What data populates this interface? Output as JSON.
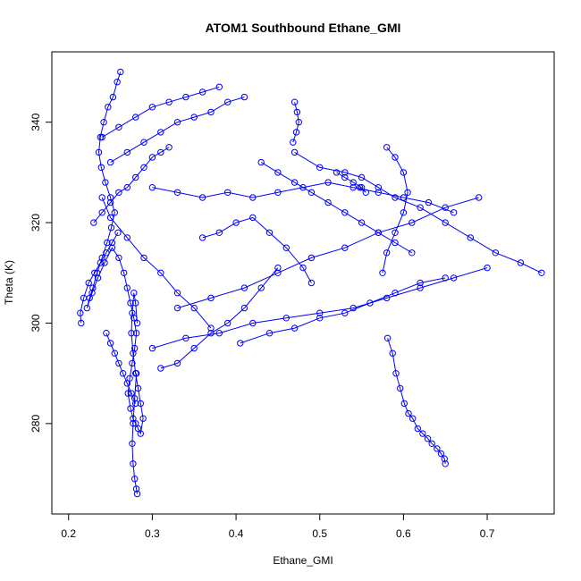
{
  "chart_data": {
    "type": "line",
    "title": "ATOM1 Southbound Ethane_GMI",
    "xlabel": "Ethane_GMI",
    "ylabel": "Theta (K)",
    "xlim": [
      0.18,
      0.78
    ],
    "ylim": [
      262,
      354
    ],
    "x_ticks": [
      0.2,
      0.3,
      0.4,
      0.5,
      0.6,
      0.7
    ],
    "x_tick_labels": [
      "0.2",
      "0.3",
      "0.4",
      "0.5",
      "0.6",
      "0.7"
    ],
    "y_ticks": [
      280,
      300,
      320,
      340
    ],
    "y_tick_labels": [
      "280",
      "300",
      "320",
      "340"
    ],
    "grid": false,
    "marker": "open-circle",
    "series_color": "#0000ff",
    "series": [
      {
        "x": [
          0.262,
          0.258,
          0.253,
          0.247,
          0.242,
          0.238,
          0.236,
          0.239,
          0.244,
          0.25,
          0.255,
          0.251,
          0.246,
          0.24,
          0.234,
          0.229,
          0.225,
          0.222,
          0.228,
          0.235,
          0.243,
          0.252,
          0.26,
          0.266,
          0.27,
          0.274,
          0.278,
          0.281,
          0.279,
          0.276,
          0.273,
          0.271,
          0.274,
          0.277,
          0.28,
          0.283,
          0.286,
          0.289,
          0.286,
          0.283,
          0.28,
          0.277,
          0.275,
          0.276,
          0.278,
          0.28,
          0.282
        ],
        "y": [
          350,
          348,
          345,
          343,
          340,
          337,
          334,
          331,
          328,
          325,
          322,
          319,
          316,
          313,
          310,
          307,
          305,
          303,
          306,
          309,
          312,
          315,
          313,
          310,
          307,
          304,
          301,
          298,
          295,
          292,
          289,
          286,
          283,
          281,
          280,
          279,
          278,
          281,
          284,
          287,
          290,
          294,
          298,
          302,
          306,
          304,
          300
        ]
      },
      {
        "x": [
          0.281,
          0.279,
          0.277,
          0.276,
          0.277,
          0.279,
          0.281,
          0.282
        ],
        "y": [
          290,
          285,
          280,
          276,
          272,
          269,
          267,
          266
        ]
      },
      {
        "x": [
          0.215,
          0.214,
          0.218,
          0.224,
          0.231,
          0.238,
          0.245,
          0.252,
          0.259
        ],
        "y": [
          300,
          302,
          305,
          308,
          310,
          312,
          314,
          316,
          318
        ]
      },
      {
        "x": [
          0.24,
          0.25,
          0.27,
          0.29,
          0.31,
          0.33,
          0.35,
          0.37
        ],
        "y": [
          325,
          321,
          317,
          313,
          310,
          306,
          303,
          299
        ]
      },
      {
        "x": [
          0.24,
          0.26,
          0.28,
          0.3,
          0.32,
          0.34,
          0.36,
          0.38
        ],
        "y": [
          337,
          339,
          341,
          343,
          344,
          345,
          346,
          347
        ]
      },
      {
        "x": [
          0.25,
          0.27,
          0.29,
          0.31,
          0.33,
          0.35,
          0.37,
          0.39,
          0.41
        ],
        "y": [
          332,
          334,
          336,
          338,
          340,
          341,
          342,
          344,
          345
        ]
      },
      {
        "x": [
          0.3,
          0.33,
          0.36,
          0.39,
          0.42,
          0.45,
          0.48,
          0.51,
          0.54,
          0.57,
          0.6,
          0.63,
          0.66
        ],
        "y": [
          327,
          326,
          325,
          326,
          325,
          326,
          327,
          328,
          327,
          326,
          325,
          324,
          322
        ]
      },
      {
        "x": [
          0.47,
          0.5,
          0.53,
          0.55,
          0.57,
          0.59,
          0.62,
          0.65,
          0.68,
          0.71,
          0.74,
          0.765
        ],
        "y": [
          334,
          331,
          330,
          329,
          327,
          325,
          323,
          320,
          317,
          314,
          312,
          310
        ]
      },
      {
        "x": [
          0.33,
          0.37,
          0.41,
          0.45,
          0.49,
          0.53,
          0.57,
          0.61,
          0.65,
          0.69
        ],
        "y": [
          303,
          305,
          307,
          310,
          313,
          315,
          318,
          320,
          323,
          325
        ]
      },
      {
        "x": [
          0.3,
          0.34,
          0.38,
          0.42,
          0.46,
          0.5,
          0.54,
          0.58,
          0.62,
          0.66,
          0.7
        ],
        "y": [
          295,
          297,
          298,
          300,
          301,
          302,
          303,
          305,
          307,
          309,
          311
        ]
      },
      {
        "x": [
          0.405,
          0.44,
          0.47,
          0.5,
          0.53,
          0.56,
          0.59,
          0.62,
          0.65
        ],
        "y": [
          296,
          298,
          299,
          301,
          302,
          304,
          306,
          308,
          309
        ]
      },
      {
        "x": [
          0.581,
          0.587,
          0.591,
          0.596,
          0.601,
          0.606,
          0.611,
          0.617,
          0.623,
          0.629,
          0.634,
          0.64,
          0.645,
          0.649,
          0.65
        ],
        "y": [
          297,
          294,
          290,
          287,
          284,
          282,
          281,
          279,
          278,
          277,
          276,
          275,
          274,
          273,
          272
        ]
      },
      {
        "x": [
          0.58,
          0.59,
          0.6,
          0.605,
          0.6,
          0.59,
          0.58,
          0.575
        ],
        "y": [
          335,
          333,
          330,
          326,
          322,
          318,
          314,
          310
        ]
      },
      {
        "x": [
          0.52,
          0.53,
          0.54,
          0.55,
          0.555,
          0.548
        ],
        "y": [
          330,
          329,
          328,
          327,
          326,
          327
        ]
      },
      {
        "x": [
          0.43,
          0.45,
          0.47,
          0.49,
          0.51,
          0.53,
          0.55,
          0.57,
          0.59,
          0.61
        ],
        "y": [
          332,
          330,
          328,
          326,
          324,
          322,
          320,
          318,
          316,
          314
        ]
      },
      {
        "x": [
          0.47,
          0.473,
          0.475,
          0.472,
          0.468
        ],
        "y": [
          344,
          342,
          340,
          338,
          336
        ]
      },
      {
        "x": [
          0.36,
          0.38,
          0.4,
          0.42,
          0.44,
          0.46,
          0.48,
          0.49
        ],
        "y": [
          317,
          318,
          320,
          321,
          318,
          315,
          311,
          308
        ]
      },
      {
        "x": [
          0.31,
          0.33,
          0.35,
          0.37,
          0.39,
          0.41,
          0.43,
          0.45
        ],
        "y": [
          291,
          292,
          295,
          298,
          300,
          303,
          307,
          311
        ]
      },
      {
        "x": [
          0.23,
          0.24,
          0.25,
          0.26,
          0.27,
          0.28,
          0.29,
          0.3,
          0.31,
          0.32
        ],
        "y": [
          320,
          322,
          324,
          326,
          327,
          329,
          331,
          333,
          334,
          335
        ]
      },
      {
        "x": [
          0.245,
          0.25,
          0.255,
          0.26,
          0.265,
          0.27,
          0.275,
          0.28
        ],
        "y": [
          298,
          296,
          294,
          292,
          290,
          288,
          286,
          284
        ]
      }
    ]
  }
}
